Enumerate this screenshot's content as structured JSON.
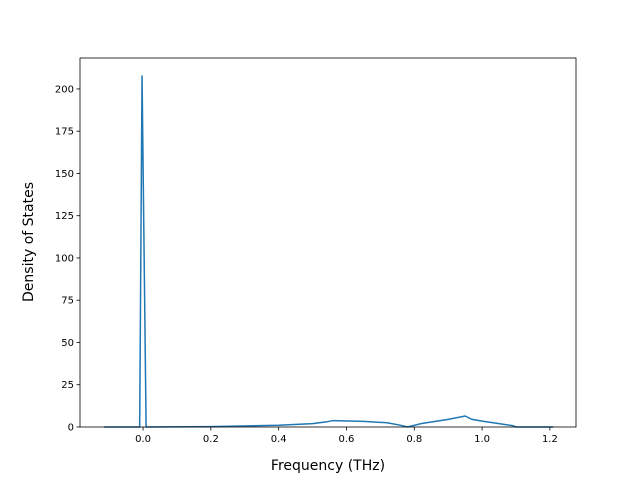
{
  "chart_data": {
    "type": "line",
    "x_label": "Frequency (THz)",
    "y_label": "Density of States",
    "x": [
      -0.115,
      -0.01,
      -0.003,
      0.009,
      0.2,
      0.4,
      0.5,
      0.54,
      0.56,
      0.65,
      0.72,
      0.76,
      0.78,
      0.82,
      0.9,
      0.95,
      0.97,
      1.0,
      1.05,
      1.09,
      1.1,
      1.21
    ],
    "series": [
      {
        "color": "#1f77b4",
        "values": [
          0,
          0,
          208,
          0,
          0.2,
          1,
          2,
          3,
          3.8,
          3.3,
          2.5,
          1,
          0,
          2,
          4.5,
          6.5,
          4.5,
          3.5,
          2,
          0.8,
          0,
          0
        ]
      }
    ],
    "xlim": [
      -0.186,
      1.277
    ],
    "xticks": [
      {
        "value": 0,
        "label": "0.0"
      },
      0.2,
      0.4,
      0.6,
      0.8,
      {
        "value": 1,
        "label": "1.0"
      },
      1.2
    ],
    "ylim": [
      0,
      218.3
    ],
    "yticks": [
      0,
      25,
      50,
      75,
      100,
      125,
      150,
      175,
      200
    ]
  }
}
